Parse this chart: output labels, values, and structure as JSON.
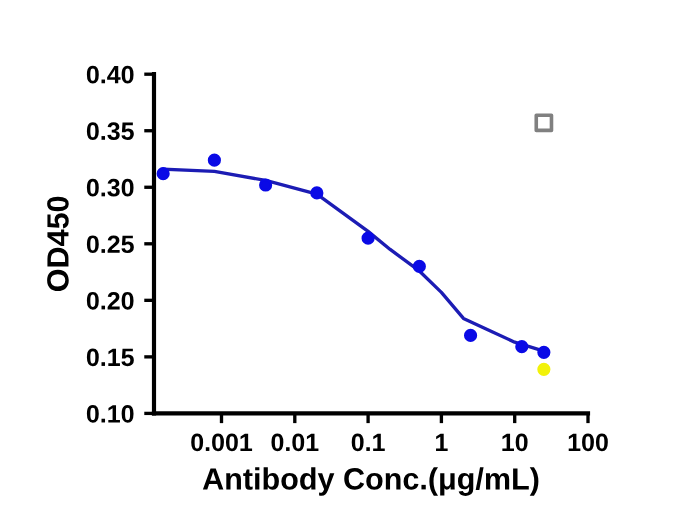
{
  "chart_data": {
    "type": "scatter",
    "xlabel": "Antibody Conc.(μg/mL)",
    "ylabel": "OD450",
    "log": "x",
    "xlim": [
      0.00012,
      100
    ],
    "xticks": [
      0.001,
      0.01,
      0.1,
      1,
      10,
      100
    ],
    "ylim": [
      0.1,
      0.4
    ],
    "yticks": [
      {
        "value": 0.1,
        "label": "0.10"
      },
      0.15,
      {
        "value": 0.2,
        "label": "0.20"
      },
      0.25,
      {
        "value": 0.3,
        "label": "0.30"
      },
      0.35,
      {
        "value": 0.4,
        "label": "0.40"
      }
    ],
    "grid": false,
    "legend": false,
    "series": [
      {
        "type": "line",
        "color": "#1c1cb4",
        "marker": "none",
        "line_style": "solid",
        "x": [
          0.00016,
          0.0008,
          0.004,
          0.02,
          0.1,
          0.2,
          0.5,
          1,
          2,
          5,
          10,
          25
        ],
        "values": [
          0.316,
          0.314,
          0.306,
          0.294,
          0.261,
          0.245,
          0.226,
          0.207,
          0.184,
          0.172,
          0.163,
          0.155
        ]
      },
      {
        "color": "#0a0ae6",
        "marker": "circle",
        "x": [
          0.00016,
          0.0008,
          0.004,
          0.02,
          0.1,
          0.5,
          2.5,
          12.5,
          25
        ],
        "values": [
          0.312,
          0.324,
          0.302,
          0.295,
          0.255,
          0.23,
          0.169,
          0.159,
          0.154
        ]
      },
      {
        "color": "#f2f20a",
        "marker": "circle",
        "x": [
          25
        ],
        "values": [
          0.139
        ]
      },
      {
        "color": "#808080",
        "marker": "square",
        "x": [
          25
        ],
        "values": [
          0.357
        ]
      }
    ]
  }
}
